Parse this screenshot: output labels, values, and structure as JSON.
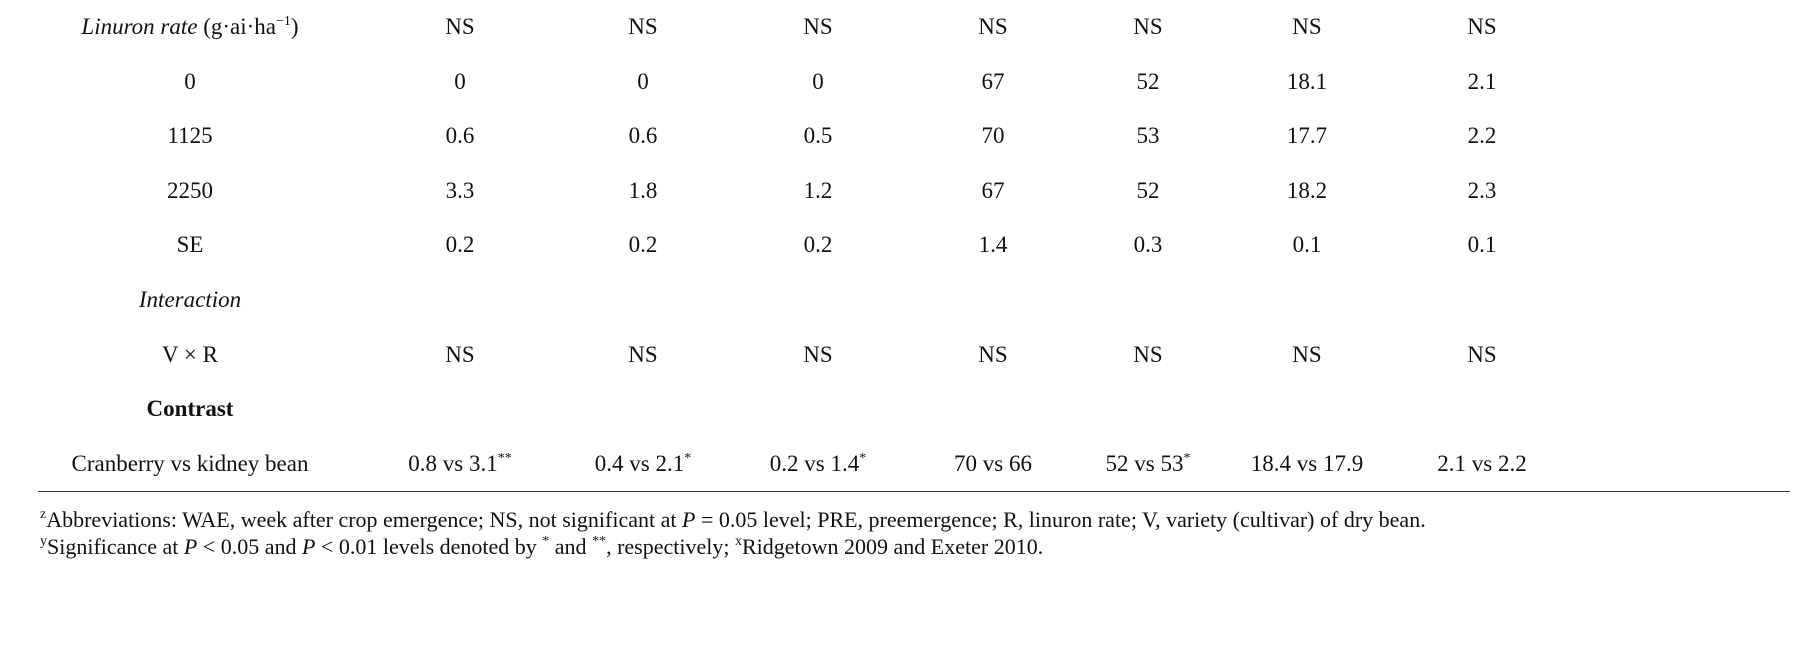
{
  "table": {
    "rows": [
      {
        "label": [
          "Linuron rate",
          " (g·ai·ha",
          "−1",
          ")"
        ],
        "cells": [
          "NS",
          "NS",
          "NS",
          "NS",
          "NS",
          "NS",
          "NS"
        ]
      },
      {
        "label": "0",
        "cells": [
          "0",
          "0",
          "0",
          "67",
          "52",
          "18.1",
          "2.1"
        ]
      },
      {
        "label": "1125",
        "cells": [
          "0.6",
          "0.6",
          "0.5",
          "70",
          "53",
          "17.7",
          "2.2"
        ]
      },
      {
        "label": "2250",
        "cells": [
          "3.3",
          "1.8",
          "1.2",
          "67",
          "52",
          "18.2",
          "2.3"
        ]
      },
      {
        "label": "SE",
        "cells": [
          "0.2",
          "0.2",
          "0.2",
          "1.4",
          "0.3",
          "0.1",
          "0.1"
        ]
      },
      {
        "label": "Interaction",
        "cells": []
      },
      {
        "label": "V × R",
        "cells": [
          "NS",
          "NS",
          "NS",
          "NS",
          "NS",
          "NS",
          "NS"
        ]
      },
      {
        "label": "Contrast",
        "cells": []
      },
      {
        "label": "Cranberry vs kidney bean",
        "cells": [
          [
            "0.8 vs 3.1",
            "**"
          ],
          [
            "0.4 vs 2.1",
            "*"
          ],
          [
            "0.2 vs 1.4",
            "*"
          ],
          "70 vs 66",
          [
            "52 vs 53",
            "*"
          ],
          "18.4 vs 17.9",
          "2.1 vs 2.2"
        ]
      }
    ]
  },
  "footnotes": [
    [
      "z",
      "Abbreviations: WAE, week after crop emergence; NS, not significant at ",
      "P",
      " = 0.05 level; PRE, preemergence; R, linuron rate; V, variety (cultivar) of dry bean."
    ],
    [
      "y",
      "Significance at ",
      "P",
      " < 0.05 and ",
      "P",
      " < 0.01 levels denoted by ",
      "*",
      " and ",
      "**",
      ", respectively; ",
      "x",
      "Ridgetown 2009 and Exeter 2010."
    ]
  ]
}
